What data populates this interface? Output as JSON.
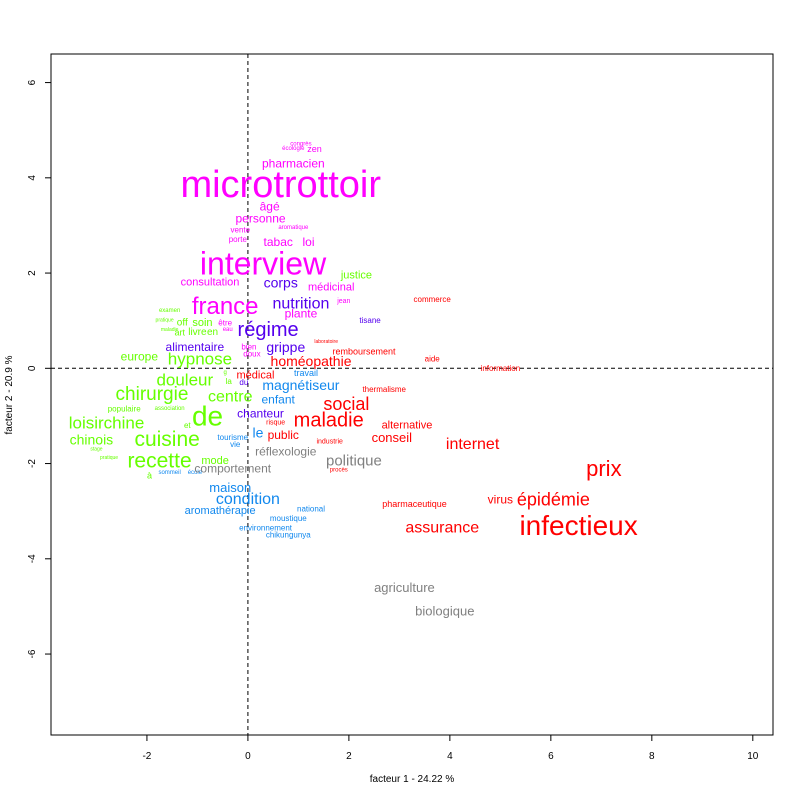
{
  "chart_data": {
    "type": "scatter",
    "xlabel": "facteur  1  - 24.22 %",
    "ylabel": "facteur  2  - 20.9 %",
    "xlim": [
      -3.9,
      10.4
    ],
    "ylim": [
      -7.7,
      6.6
    ],
    "xticks": [
      "-2",
      "0",
      "2",
      "4",
      "6",
      "8",
      "10"
    ],
    "yticks": [
      "-6",
      "-4",
      "-2",
      "0",
      "2",
      "4",
      "6"
    ],
    "reference_lines": [
      {
        "axis": "x",
        "value": 0
      },
      {
        "axis": "y",
        "value": 0
      }
    ],
    "grid": false,
    "legend": "none",
    "series": [
      {
        "color": "#ff00ff",
        "points": [
          {
            "label": "congrès",
            "x": 1.05,
            "y": 4.7,
            "size": 6
          },
          {
            "label": "écologie",
            "x": 0.9,
            "y": 4.6,
            "size": 6
          },
          {
            "label": "zen",
            "x": 1.32,
            "y": 4.6,
            "size": 9
          },
          {
            "label": "pharmacien",
            "x": 0.9,
            "y": 4.3,
            "size": 12
          },
          {
            "label": "microtrottoir",
            "x": 0.65,
            "y": 3.85,
            "size": 38
          },
          {
            "label": "âgé",
            "x": 0.43,
            "y": 3.4,
            "size": 12
          },
          {
            "label": "personne",
            "x": 0.25,
            "y": 3.15,
            "size": 12
          },
          {
            "label": "aromatique",
            "x": 0.9,
            "y": 2.95,
            "size": 6
          },
          {
            "label": "vente",
            "x": -0.15,
            "y": 2.9,
            "size": 8
          },
          {
            "label": "porte",
            "x": -0.2,
            "y": 2.7,
            "size": 8
          },
          {
            "label": "tabac",
            "x": 0.6,
            "y": 2.65,
            "size": 12
          },
          {
            "label": "loi",
            "x": 1.2,
            "y": 2.65,
            "size": 12
          },
          {
            "label": "interview",
            "x": 0.3,
            "y": 2.2,
            "size": 32
          },
          {
            "label": "consultation",
            "x": -0.75,
            "y": 1.8,
            "size": 11
          },
          {
            "label": "médicinal",
            "x": 1.65,
            "y": 1.7,
            "size": 11
          },
          {
            "label": "jean",
            "x": 1.9,
            "y": 1.4,
            "size": 7
          },
          {
            "label": "france",
            "x": -0.45,
            "y": 1.3,
            "size": 24
          },
          {
            "label": "plante",
            "x": 1.05,
            "y": 1.15,
            "size": 12
          },
          {
            "label": "être",
            "x": -0.45,
            "y": 0.95,
            "size": 8
          },
          {
            "label": "eau",
            "x": -0.4,
            "y": 0.8,
            "size": 6
          },
          {
            "label": "bien",
            "x": 0.02,
            "y": 0.45,
            "size": 8
          },
          {
            "label": "doux",
            "x": 0.08,
            "y": 0.3,
            "size": 8
          }
        ]
      },
      {
        "color": "#5500ee",
        "points": [
          {
            "label": "corps",
            "x": 0.65,
            "y": 1.8,
            "size": 14
          },
          {
            "label": "nutrition",
            "x": 1.05,
            "y": 1.35,
            "size": 16
          },
          {
            "label": "régime",
            "x": 0.4,
            "y": 0.8,
            "size": 20
          },
          {
            "label": "tisane",
            "x": 2.42,
            "y": 1.0,
            "size": 8
          },
          {
            "label": "alimentaire",
            "x": -1.05,
            "y": 0.45,
            "size": 12
          },
          {
            "label": "grippe",
            "x": 0.75,
            "y": 0.45,
            "size": 14
          },
          {
            "label": "chanteur",
            "x": 0.25,
            "y": -0.95,
            "size": 12
          },
          {
            "label": "du",
            "x": -0.08,
            "y": -0.3,
            "size": 8
          }
        ]
      },
      {
        "color": "#ff0000",
        "points": [
          {
            "label": "commerce",
            "x": 3.65,
            "y": 1.45,
            "size": 8
          },
          {
            "label": "laboratoire",
            "x": 1.55,
            "y": 0.55,
            "size": 5
          },
          {
            "label": "remboursement",
            "x": 2.3,
            "y": 0.35,
            "size": 9
          },
          {
            "label": "homéopathie",
            "x": 1.25,
            "y": 0.15,
            "size": 14
          },
          {
            "label": "aide",
            "x": 3.65,
            "y": 0.2,
            "size": 8
          },
          {
            "label": "médical",
            "x": 0.15,
            "y": -0.15,
            "size": 11
          },
          {
            "label": "information",
            "x": 5.0,
            "y": 0.0,
            "size": 8
          },
          {
            "label": "thermalisme",
            "x": 2.7,
            "y": -0.45,
            "size": 8
          },
          {
            "label": "social",
            "x": 1.95,
            "y": -0.75,
            "size": 18
          },
          {
            "label": "maladie",
            "x": 1.6,
            "y": -1.1,
            "size": 20
          },
          {
            "label": "alternative",
            "x": 3.15,
            "y": -1.2,
            "size": 11
          },
          {
            "label": "risque",
            "x": 0.55,
            "y": -1.15,
            "size": 7
          },
          {
            "label": "public",
            "x": 0.7,
            "y": -1.4,
            "size": 12
          },
          {
            "label": "conseil",
            "x": 2.85,
            "y": -1.45,
            "size": 13
          },
          {
            "label": "industrie",
            "x": 1.62,
            "y": -1.55,
            "size": 7
          },
          {
            "label": "internet",
            "x": 4.45,
            "y": -1.6,
            "size": 16
          },
          {
            "label": "procès",
            "x": 1.8,
            "y": -2.15,
            "size": 6
          },
          {
            "label": "prix",
            "x": 7.05,
            "y": -2.1,
            "size": 22
          },
          {
            "label": "virus",
            "x": 5.0,
            "y": -2.75,
            "size": 12
          },
          {
            "label": "épidémie",
            "x": 6.05,
            "y": -2.75,
            "size": 18
          },
          {
            "label": "pharmaceutique",
            "x": 3.3,
            "y": -2.85,
            "size": 9
          },
          {
            "label": "assurance",
            "x": 3.85,
            "y": -3.35,
            "size": 16
          },
          {
            "label": "infectieux",
            "x": 6.55,
            "y": -3.3,
            "size": 28
          }
        ]
      },
      {
        "color": "#66ff00",
        "points": [
          {
            "label": "justice",
            "x": 2.15,
            "y": 1.95,
            "size": 11
          },
          {
            "label": "examen",
            "x": -1.55,
            "y": 1.2,
            "size": 6
          },
          {
            "label": "pratique",
            "x": -1.65,
            "y": 1.0,
            "size": 5
          },
          {
            "label": "off",
            "x": -1.3,
            "y": 0.95,
            "size": 10
          },
          {
            "label": "soin",
            "x": -0.9,
            "y": 0.95,
            "size": 11
          },
          {
            "label": "maladie",
            "x": -1.55,
            "y": 0.8,
            "size": 5
          },
          {
            "label": "art",
            "x": -1.35,
            "y": 0.75,
            "size": 9
          },
          {
            "label": "livre",
            "x": -1.0,
            "y": 0.75,
            "size": 10
          },
          {
            "label": "en",
            "x": -0.7,
            "y": 0.75,
            "size": 10
          },
          {
            "label": "europe",
            "x": -2.15,
            "y": 0.25,
            "size": 12
          },
          {
            "label": "hypnose",
            "x": -0.95,
            "y": 0.2,
            "size": 17
          },
          {
            "label": "g",
            "x": -0.45,
            "y": -0.1,
            "size": 6
          },
          {
            "label": "douleur",
            "x": -1.25,
            "y": -0.25,
            "size": 17
          },
          {
            "label": "la",
            "x": -0.38,
            "y": -0.28,
            "size": 8
          },
          {
            "label": "chirurgie",
            "x": -1.9,
            "y": -0.55,
            "size": 19
          },
          {
            "label": "centre",
            "x": -0.35,
            "y": -0.6,
            "size": 16
          },
          {
            "label": "populaire",
            "x": -2.45,
            "y": -0.85,
            "size": 8
          },
          {
            "label": "association",
            "x": -1.55,
            "y": -0.85,
            "size": 6
          },
          {
            "label": "de",
            "x": -0.8,
            "y": -1.0,
            "size": 28
          },
          {
            "label": "loisirchine",
            "x": -2.8,
            "y": -1.15,
            "size": 17
          },
          {
            "label": "et",
            "x": -1.2,
            "y": -1.2,
            "size": 8
          },
          {
            "label": "chinois",
            "x": -3.1,
            "y": -1.5,
            "size": 14
          },
          {
            "label": "cuisine",
            "x": -1.6,
            "y": -1.5,
            "size": 21
          },
          {
            "label": "mode",
            "x": -0.65,
            "y": -1.95,
            "size": 11
          },
          {
            "label": "recette",
            "x": -1.75,
            "y": -1.95,
            "size": 21
          },
          {
            "label": "stage",
            "x": -3.0,
            "y": -1.7,
            "size": 5
          },
          {
            "label": "pratique",
            "x": -2.75,
            "y": -1.88,
            "size": 5
          },
          {
            "label": "à",
            "x": -1.95,
            "y": -2.25,
            "size": 9
          }
        ]
      },
      {
        "color": "#1188ee",
        "points": [
          {
            "label": "travail",
            "x": 1.15,
            "y": -0.1,
            "size": 9
          },
          {
            "label": "magnétiseur",
            "x": 1.05,
            "y": -0.35,
            "size": 14
          },
          {
            "label": "enfant",
            "x": 0.6,
            "y": -0.65,
            "size": 12
          },
          {
            "label": "tourisme",
            "x": -0.3,
            "y": -1.45,
            "size": 8
          },
          {
            "label": "le",
            "x": 0.2,
            "y": -1.35,
            "size": 14
          },
          {
            "label": "vie",
            "x": -0.25,
            "y": -1.6,
            "size": 8
          },
          {
            "label": "sommeil",
            "x": -1.55,
            "y": -2.2,
            "size": 6
          },
          {
            "label": "école",
            "x": -1.05,
            "y": -2.2,
            "size": 6
          },
          {
            "label": "maison",
            "x": -0.35,
            "y": -2.5,
            "size": 13
          },
          {
            "label": "condition",
            "x": 0.0,
            "y": -2.75,
            "size": 16
          },
          {
            "label": "aromathérapie",
            "x": -0.55,
            "y": -3.0,
            "size": 11
          },
          {
            "label": "national",
            "x": 1.25,
            "y": -2.95,
            "size": 8
          },
          {
            "label": "moustique",
            "x": 0.8,
            "y": -3.15,
            "size": 8
          },
          {
            "label": "environnement",
            "x": 0.35,
            "y": -3.35,
            "size": 8
          },
          {
            "label": "chikungunya",
            "x": 0.8,
            "y": -3.5,
            "size": 8
          }
        ]
      },
      {
        "color": "#808080",
        "points": [
          {
            "label": "réflexologie",
            "x": 0.75,
            "y": -1.75,
            "size": 12
          },
          {
            "label": "politique",
            "x": 2.1,
            "y": -1.95,
            "size": 15
          },
          {
            "label": "comportement",
            "x": -0.3,
            "y": -2.1,
            "size": 12
          },
          {
            "label": "agriculture",
            "x": 3.1,
            "y": -4.6,
            "size": 13
          },
          {
            "label": "biologique",
            "x": 3.9,
            "y": -5.1,
            "size": 13
          }
        ]
      }
    ]
  }
}
